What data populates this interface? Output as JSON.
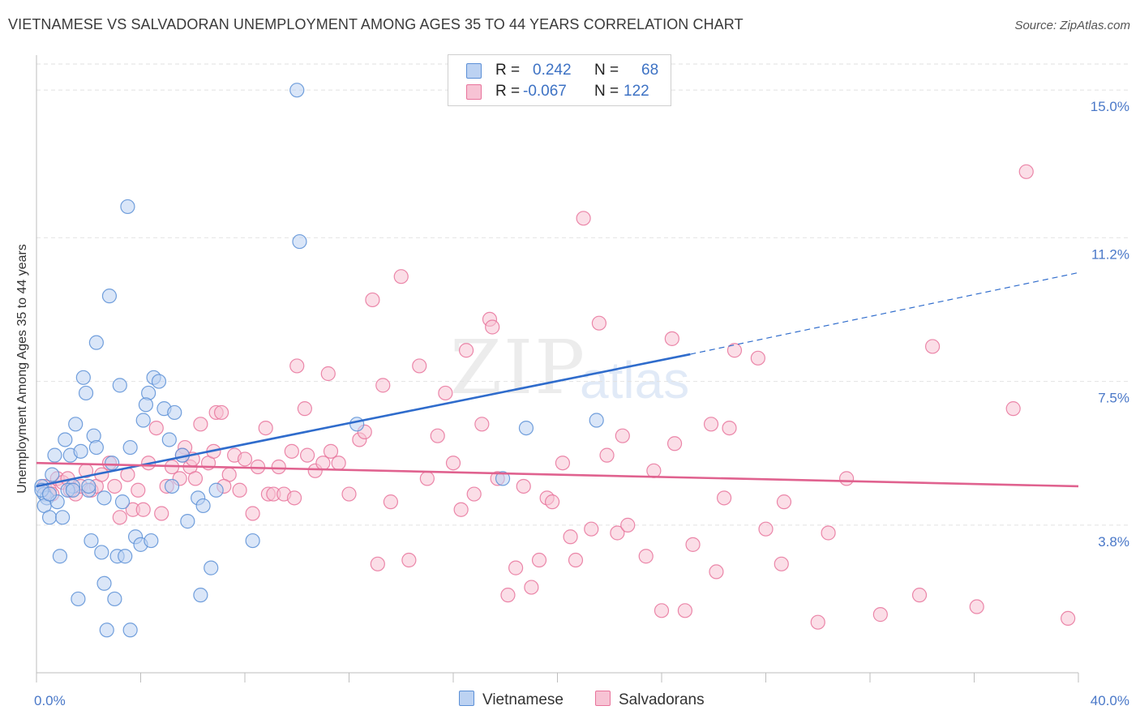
{
  "title": "VIETNAMESE VS SALVADORAN UNEMPLOYMENT AMONG AGES 35 TO 44 YEARS CORRELATION CHART",
  "source": "Source: ZipAtlas.com",
  "watermark": {
    "zip": "ZIP",
    "atlas": "atlas"
  },
  "legend": {
    "rows": [
      {
        "r_label": "R =",
        "r_value": "0.242",
        "n_label": "N =",
        "n_value": "68"
      },
      {
        "r_label": "R =",
        "r_value": "-0.067",
        "n_label": "N =",
        "n_value": "122"
      }
    ]
  },
  "series_labels": {
    "vietnamese": "Vietnamese",
    "salvadorans": "Salvadorans"
  },
  "colors": {
    "blue": "#5b8fd6",
    "blue_fill": "#bcd2f2",
    "pink": "#e8739b",
    "pink_fill": "#f7c3d4",
    "tick": "#4a78c8"
  },
  "chart_data": {
    "type": "scatter",
    "title": "VIETNAMESE VS SALVADORAN UNEMPLOYMENT AMONG AGES 35 TO 44 YEARS CORRELATION CHART",
    "xlabel": "",
    "ylabel": "Unemployment Among Ages 35 to 44 years",
    "xlim": [
      0,
      40
    ],
    "ylim": [
      0,
      15.4
    ],
    "x_tick_labels": [
      "0.0%",
      "40.0%"
    ],
    "y_ticks": [
      3.8,
      7.5,
      11.2,
      15.0
    ],
    "y_tick_labels": [
      "3.8%",
      "7.5%",
      "11.2%",
      "15.0%"
    ],
    "series": [
      {
        "name": "Vietnamese",
        "R": 0.242,
        "N": 68,
        "trend": {
          "x0": 0,
          "y0": 4.8,
          "x1": 25.1,
          "y1": 8.2,
          "dash_x1": 40,
          "dash_y1": 10.3
        },
        "points": [
          [
            0.2,
            4.8
          ],
          [
            0.3,
            4.6
          ],
          [
            0.4,
            4.5
          ],
          [
            0.3,
            4.3
          ],
          [
            0.5,
            4.0
          ],
          [
            0.6,
            5.1
          ],
          [
            0.8,
            4.4
          ],
          [
            0.9,
            3.0
          ],
          [
            1.0,
            4.0
          ],
          [
            1.1,
            6.0
          ],
          [
            1.3,
            5.6
          ],
          [
            1.4,
            4.8
          ],
          [
            1.5,
            6.4
          ],
          [
            1.6,
            1.9
          ],
          [
            1.7,
            5.7
          ],
          [
            1.8,
            7.6
          ],
          [
            1.9,
            7.2
          ],
          [
            2.1,
            3.4
          ],
          [
            2.2,
            6.1
          ],
          [
            2.3,
            5.8
          ],
          [
            2.3,
            8.5
          ],
          [
            2.5,
            3.1
          ],
          [
            2.6,
            4.5
          ],
          [
            2.6,
            2.3
          ],
          [
            2.8,
            9.7
          ],
          [
            2.9,
            5.4
          ],
          [
            3.0,
            1.9
          ],
          [
            3.1,
            3.0
          ],
          [
            3.2,
            7.4
          ],
          [
            3.3,
            4.4
          ],
          [
            3.5,
            12.0
          ],
          [
            3.6,
            5.8
          ],
          [
            3.8,
            3.5
          ],
          [
            4.0,
            3.3
          ],
          [
            4.3,
            7.2
          ],
          [
            4.5,
            7.6
          ],
          [
            4.7,
            7.5
          ],
          [
            4.9,
            6.8
          ],
          [
            5.1,
            6.0
          ],
          [
            5.3,
            6.7
          ],
          [
            5.6,
            5.6
          ],
          [
            5.8,
            3.9
          ],
          [
            6.2,
            4.5
          ],
          [
            6.4,
            4.3
          ],
          [
            6.7,
            2.7
          ],
          [
            6.9,
            4.7
          ],
          [
            2.0,
            4.7
          ],
          [
            4.2,
            6.9
          ],
          [
            0.7,
            5.6
          ],
          [
            1.2,
            4.7
          ],
          [
            10.0,
            15.0
          ],
          [
            10.1,
            11.1
          ],
          [
            12.3,
            6.4
          ],
          [
            17.9,
            5.0
          ],
          [
            18.8,
            6.3
          ],
          [
            21.5,
            6.5
          ],
          [
            8.3,
            3.4
          ],
          [
            6.3,
            2.0
          ],
          [
            3.6,
            1.1
          ],
          [
            2.7,
            1.1
          ],
          [
            4.1,
            6.5
          ],
          [
            3.4,
            3.0
          ],
          [
            4.4,
            3.4
          ],
          [
            0.2,
            4.7
          ],
          [
            0.5,
            4.6
          ],
          [
            2.0,
            4.8
          ],
          [
            5.2,
            4.8
          ],
          [
            1.4,
            4.7
          ]
        ]
      },
      {
        "name": "Salvadorans",
        "R": -0.067,
        "N": 122,
        "trend": {
          "x0": 0,
          "y0": 5.4,
          "x1": 40,
          "y1": 4.8
        },
        "points": [
          [
            0.3,
            4.8
          ],
          [
            0.5,
            4.7
          ],
          [
            0.6,
            4.6
          ],
          [
            0.8,
            5.0
          ],
          [
            1.0,
            4.9
          ],
          [
            1.2,
            5.0
          ],
          [
            1.3,
            4.7
          ],
          [
            1.5,
            4.6
          ],
          [
            1.7,
            4.8
          ],
          [
            1.9,
            5.2
          ],
          [
            2.1,
            4.7
          ],
          [
            2.3,
            4.8
          ],
          [
            2.5,
            5.1
          ],
          [
            2.8,
            5.4
          ],
          [
            3.0,
            4.8
          ],
          [
            3.2,
            4.0
          ],
          [
            3.5,
            5.1
          ],
          [
            3.7,
            4.2
          ],
          [
            3.9,
            4.7
          ],
          [
            4.1,
            4.2
          ],
          [
            4.3,
            5.4
          ],
          [
            4.6,
            6.3
          ],
          [
            4.8,
            4.1
          ],
          [
            5.0,
            4.8
          ],
          [
            5.2,
            5.3
          ],
          [
            5.5,
            5.0
          ],
          [
            5.7,
            5.8
          ],
          [
            5.9,
            5.3
          ],
          [
            6.1,
            5.0
          ],
          [
            6.3,
            6.4
          ],
          [
            6.6,
            5.4
          ],
          [
            6.8,
            5.7
          ],
          [
            6.9,
            6.7
          ],
          [
            7.1,
            6.7
          ],
          [
            7.4,
            5.1
          ],
          [
            7.6,
            5.6
          ],
          [
            7.8,
            4.7
          ],
          [
            8.0,
            5.5
          ],
          [
            8.3,
            4.1
          ],
          [
            8.5,
            5.3
          ],
          [
            8.8,
            6.3
          ],
          [
            8.9,
            4.6
          ],
          [
            9.1,
            4.6
          ],
          [
            9.3,
            5.3
          ],
          [
            9.5,
            4.6
          ],
          [
            9.8,
            5.7
          ],
          [
            10.0,
            7.9
          ],
          [
            10.3,
            6.8
          ],
          [
            10.7,
            5.2
          ],
          [
            11.0,
            5.4
          ],
          [
            11.3,
            5.7
          ],
          [
            11.6,
            5.4
          ],
          [
            12.0,
            4.6
          ],
          [
            12.4,
            6.0
          ],
          [
            12.6,
            6.2
          ],
          [
            13.1,
            2.8
          ],
          [
            13.3,
            7.4
          ],
          [
            13.6,
            4.4
          ],
          [
            14.0,
            10.2
          ],
          [
            14.3,
            2.9
          ],
          [
            14.7,
            7.9
          ],
          [
            15.0,
            5.0
          ],
          [
            15.4,
            6.1
          ],
          [
            15.7,
            7.2
          ],
          [
            16.0,
            5.4
          ],
          [
            16.3,
            4.2
          ],
          [
            16.5,
            8.3
          ],
          [
            16.8,
            4.6
          ],
          [
            17.1,
            6.4
          ],
          [
            17.4,
            9.1
          ],
          [
            17.7,
            5.0
          ],
          [
            18.1,
            2.0
          ],
          [
            18.4,
            2.7
          ],
          [
            18.7,
            4.8
          ],
          [
            19.0,
            2.2
          ],
          [
            19.3,
            2.9
          ],
          [
            19.6,
            4.5
          ],
          [
            19.8,
            4.4
          ],
          [
            20.2,
            5.4
          ],
          [
            20.5,
            3.5
          ],
          [
            20.7,
            2.9
          ],
          [
            21.0,
            11.7
          ],
          [
            21.3,
            3.7
          ],
          [
            21.6,
            9.0
          ],
          [
            21.9,
            5.6
          ],
          [
            22.3,
            3.6
          ],
          [
            22.5,
            6.1
          ],
          [
            22.7,
            3.8
          ],
          [
            23.4,
            3.0
          ],
          [
            23.7,
            5.2
          ],
          [
            24.0,
            1.6
          ],
          [
            24.4,
            8.6
          ],
          [
            24.5,
            5.9
          ],
          [
            24.9,
            1.6
          ],
          [
            25.2,
            3.3
          ],
          [
            25.9,
            6.4
          ],
          [
            26.1,
            2.6
          ],
          [
            26.4,
            4.5
          ],
          [
            26.6,
            6.3
          ],
          [
            26.8,
            8.3
          ],
          [
            27.7,
            8.1
          ],
          [
            28.0,
            3.7
          ],
          [
            28.6,
            2.8
          ],
          [
            28.7,
            4.4
          ],
          [
            30.0,
            1.3
          ],
          [
            30.4,
            3.6
          ],
          [
            31.1,
            5.0
          ],
          [
            32.4,
            1.5
          ],
          [
            33.9,
            2.0
          ],
          [
            34.4,
            8.4
          ],
          [
            36.1,
            1.7
          ],
          [
            37.5,
            6.8
          ],
          [
            38.0,
            12.9
          ],
          [
            39.6,
            1.4
          ],
          [
            11.2,
            7.7
          ],
          [
            10.4,
            5.6
          ],
          [
            9.9,
            4.5
          ],
          [
            7.2,
            4.8
          ],
          [
            6.0,
            5.5
          ],
          [
            5.6,
            5.6
          ],
          [
            12.9,
            9.6
          ],
          [
            17.5,
            8.9
          ]
        ]
      }
    ]
  }
}
